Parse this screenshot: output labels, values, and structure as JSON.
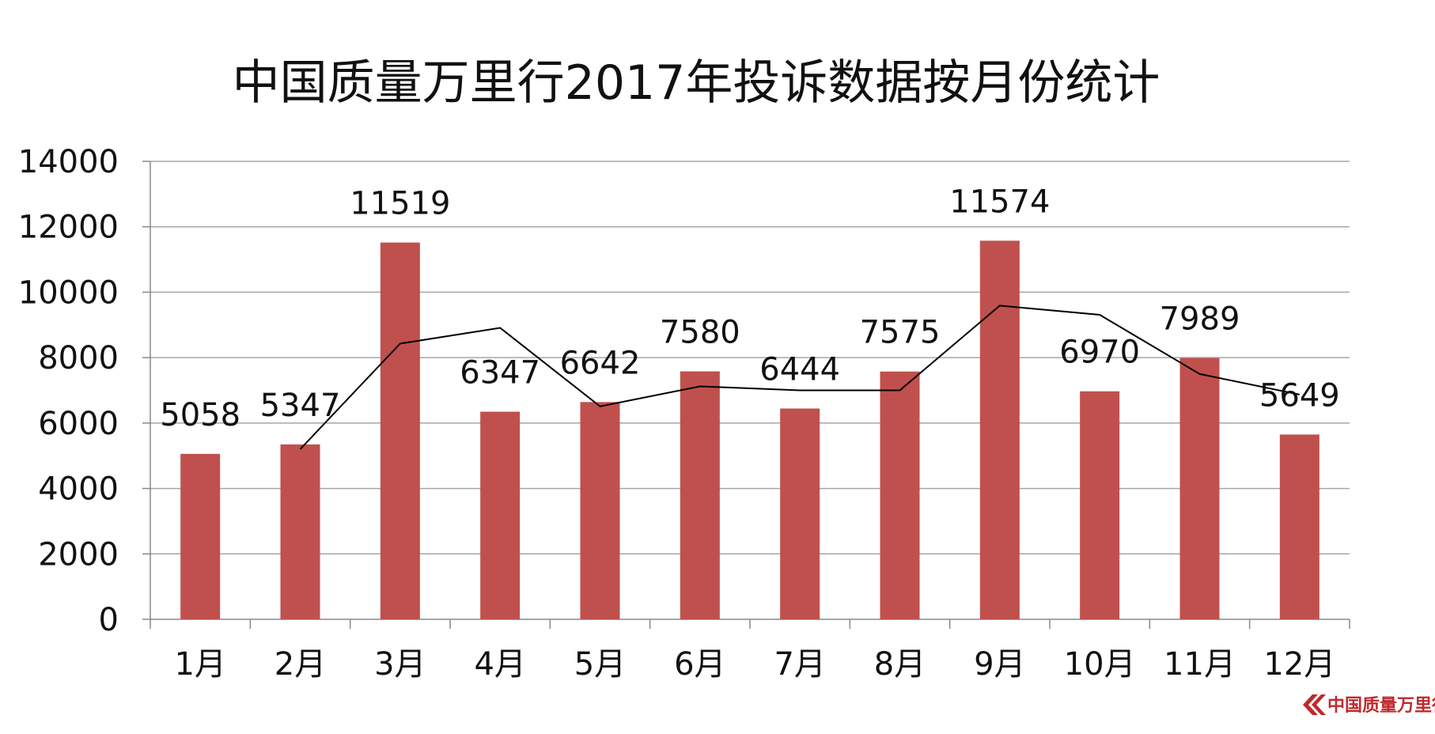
{
  "chart_data": {
    "type": "bar",
    "title": "中国质量万里行2017年投诉数据按月份统计",
    "categories": [
      "1月",
      "2月",
      "3月",
      "4月",
      "5月",
      "6月",
      "7月",
      "8月",
      "9月",
      "10月",
      "11月",
      "12月"
    ],
    "values": [
      5058,
      5347,
      11519,
      6347,
      6642,
      7580,
      6444,
      7575,
      11574,
      6970,
      7989,
      5649
    ],
    "trend_line": {
      "x_start_index": 1,
      "values": [
        5200,
        8430,
        8910,
        6510,
        7120,
        7000,
        7000,
        9590,
        9310,
        7500,
        6870
      ]
    },
    "ylim": [
      0,
      14000
    ],
    "yticks": [
      0,
      2000,
      4000,
      6000,
      8000,
      10000,
      12000,
      14000
    ],
    "grid": true,
    "colors": {
      "bar": "#c0504d",
      "grid": "#a6a6a6",
      "axis": "#888888",
      "trend_line": "#000000"
    }
  },
  "watermark": {
    "text": "中国质量万里行",
    "color": "#c0282d"
  }
}
